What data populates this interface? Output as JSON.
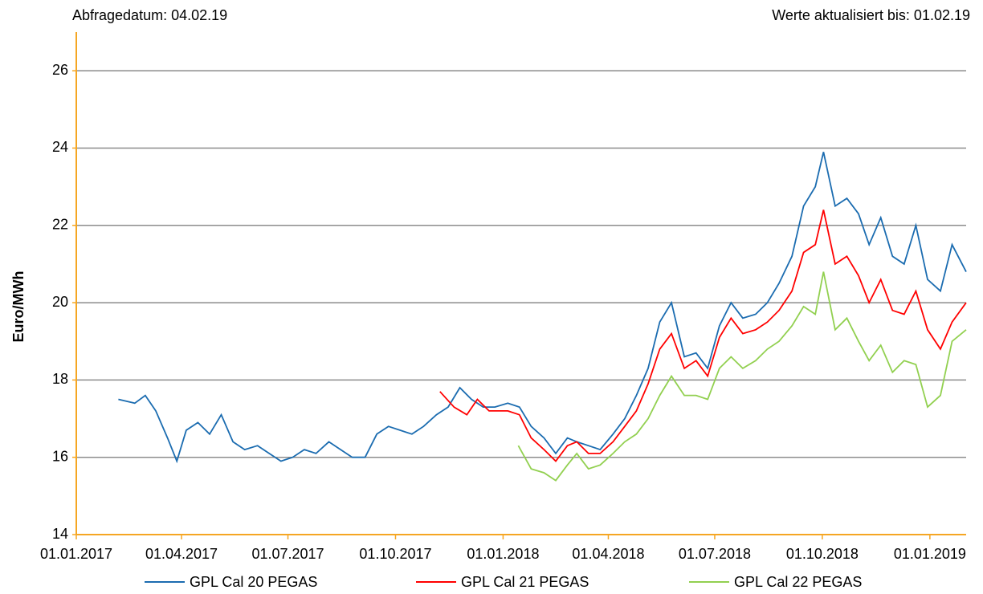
{
  "chart_data": {
    "type": "line",
    "header_left": "Abfragedatum:  04.02.19",
    "header_right": "Werte aktualisiert bis: 01.02.19",
    "ylabel": "Euro/MWh",
    "xlim": [
      "2017-01-01",
      "2019-02-01"
    ],
    "xticks": [
      {
        "value": "2017-01-01",
        "label": "01.01.2017"
      },
      {
        "value": "2017-04-01",
        "label": "01.04.2017"
      },
      {
        "value": "2017-07-01",
        "label": "01.07.2017"
      },
      {
        "value": "2017-10-01",
        "label": "01.10.2017"
      },
      {
        "value": "2018-01-01",
        "label": "01.01.2018"
      },
      {
        "value": "2018-04-01",
        "label": "01.04.2018"
      },
      {
        "value": "2018-07-01",
        "label": "01.07.2018"
      },
      {
        "value": "2018-10-01",
        "label": "01.10.2018"
      },
      {
        "value": "2019-01-01",
        "label": "01.01.2019"
      }
    ],
    "ylim": [
      14,
      27
    ],
    "yticks": [
      14,
      16,
      18,
      20,
      22,
      24,
      26
    ],
    "grid": true,
    "axis_color": "#f5a623",
    "legend": "bottom",
    "series": [
      {
        "name": "GPL Cal 20 PEGAS",
        "color": "#1b6cb0",
        "x": [
          "2017-02-06",
          "2017-02-20",
          "2017-03-01",
          "2017-03-10",
          "2017-03-20",
          "2017-03-28",
          "2017-04-05",
          "2017-04-15",
          "2017-04-25",
          "2017-05-05",
          "2017-05-15",
          "2017-05-25",
          "2017-06-05",
          "2017-06-15",
          "2017-06-25",
          "2017-07-05",
          "2017-07-15",
          "2017-07-25",
          "2017-08-05",
          "2017-08-15",
          "2017-08-25",
          "2017-09-05",
          "2017-09-15",
          "2017-09-25",
          "2017-10-05",
          "2017-10-15",
          "2017-10-25",
          "2017-11-05",
          "2017-11-15",
          "2017-11-25",
          "2017-12-05",
          "2017-12-15",
          "2017-12-25",
          "2018-01-05",
          "2018-01-15",
          "2018-01-25",
          "2018-02-05",
          "2018-02-15",
          "2018-02-25",
          "2018-03-05",
          "2018-03-15",
          "2018-03-25",
          "2018-04-05",
          "2018-04-15",
          "2018-04-25",
          "2018-05-05",
          "2018-05-15",
          "2018-05-25",
          "2018-06-05",
          "2018-06-15",
          "2018-06-25",
          "2018-07-05",
          "2018-07-15",
          "2018-07-25",
          "2018-08-05",
          "2018-08-15",
          "2018-08-25",
          "2018-09-05",
          "2018-09-15",
          "2018-09-25",
          "2018-10-02",
          "2018-10-12",
          "2018-10-22",
          "2018-11-01",
          "2018-11-10",
          "2018-11-20",
          "2018-11-30",
          "2018-12-10",
          "2018-12-20",
          "2018-12-30",
          "2019-01-10",
          "2019-01-20",
          "2019-02-01"
        ],
        "values": [
          17.5,
          17.4,
          17.6,
          17.2,
          16.5,
          15.9,
          16.7,
          16.9,
          16.6,
          17.1,
          16.4,
          16.2,
          16.3,
          16.1,
          15.9,
          16.0,
          16.2,
          16.1,
          16.4,
          16.2,
          16.0,
          16.0,
          16.6,
          16.8,
          16.7,
          16.6,
          16.8,
          17.1,
          17.3,
          17.8,
          17.5,
          17.3,
          17.3,
          17.4,
          17.3,
          16.8,
          16.5,
          16.1,
          16.5,
          16.4,
          16.3,
          16.2,
          16.6,
          17.0,
          17.6,
          18.3,
          19.5,
          20.0,
          18.6,
          18.7,
          18.3,
          19.4,
          20.0,
          19.6,
          19.7,
          20.0,
          20.5,
          21.2,
          22.5,
          23.0,
          23.9,
          22.5,
          22.7,
          22.3,
          21.5,
          22.2,
          21.2,
          21.0,
          22.0,
          20.6,
          20.3,
          21.5,
          20.8
        ]
      },
      {
        "name": "GPL Cal 21 PEGAS",
        "color": "#ff0000",
        "x": [
          "2017-11-08",
          "2017-11-20",
          "2017-12-01",
          "2017-12-10",
          "2017-12-20",
          "2018-01-05",
          "2018-01-15",
          "2018-01-25",
          "2018-02-05",
          "2018-02-15",
          "2018-02-25",
          "2018-03-05",
          "2018-03-15",
          "2018-03-25",
          "2018-04-05",
          "2018-04-15",
          "2018-04-25",
          "2018-05-05",
          "2018-05-15",
          "2018-05-25",
          "2018-06-05",
          "2018-06-15",
          "2018-06-25",
          "2018-07-05",
          "2018-07-15",
          "2018-07-25",
          "2018-08-05",
          "2018-08-15",
          "2018-08-25",
          "2018-09-05",
          "2018-09-15",
          "2018-09-25",
          "2018-10-02",
          "2018-10-12",
          "2018-10-22",
          "2018-11-01",
          "2018-11-10",
          "2018-11-20",
          "2018-11-30",
          "2018-12-10",
          "2018-12-20",
          "2018-12-30",
          "2019-01-10",
          "2019-01-20",
          "2019-02-01"
        ],
        "values": [
          17.7,
          17.3,
          17.1,
          17.5,
          17.2,
          17.2,
          17.1,
          16.5,
          16.2,
          15.9,
          16.3,
          16.4,
          16.1,
          16.1,
          16.4,
          16.8,
          17.2,
          17.9,
          18.8,
          19.2,
          18.3,
          18.5,
          18.1,
          19.1,
          19.6,
          19.2,
          19.3,
          19.5,
          19.8,
          20.3,
          21.3,
          21.5,
          22.4,
          21.0,
          21.2,
          20.7,
          20.0,
          20.6,
          19.8,
          19.7,
          20.3,
          19.3,
          18.8,
          19.5,
          20.0
        ]
      },
      {
        "name": "GPL Cal 22 PEGAS",
        "color": "#92d050",
        "x": [
          "2018-01-14",
          "2018-01-25",
          "2018-02-05",
          "2018-02-15",
          "2018-02-25",
          "2018-03-05",
          "2018-03-15",
          "2018-03-25",
          "2018-04-05",
          "2018-04-15",
          "2018-04-25",
          "2018-05-05",
          "2018-05-15",
          "2018-05-25",
          "2018-06-05",
          "2018-06-15",
          "2018-06-25",
          "2018-07-05",
          "2018-07-15",
          "2018-07-25",
          "2018-08-05",
          "2018-08-15",
          "2018-08-25",
          "2018-09-05",
          "2018-09-15",
          "2018-09-25",
          "2018-10-02",
          "2018-10-12",
          "2018-10-22",
          "2018-11-01",
          "2018-11-10",
          "2018-11-20",
          "2018-11-30",
          "2018-12-10",
          "2018-12-20",
          "2018-12-30",
          "2019-01-10",
          "2019-01-20",
          "2019-02-01"
        ],
        "values": [
          16.3,
          15.7,
          15.6,
          15.4,
          15.8,
          16.1,
          15.7,
          15.8,
          16.1,
          16.4,
          16.6,
          17.0,
          17.6,
          18.1,
          17.6,
          17.6,
          17.5,
          18.3,
          18.6,
          18.3,
          18.5,
          18.8,
          19.0,
          19.4,
          19.9,
          19.7,
          20.8,
          19.3,
          19.6,
          19.0,
          18.5,
          18.9,
          18.2,
          18.5,
          18.4,
          17.3,
          17.6,
          19.0,
          19.3
        ]
      }
    ]
  }
}
